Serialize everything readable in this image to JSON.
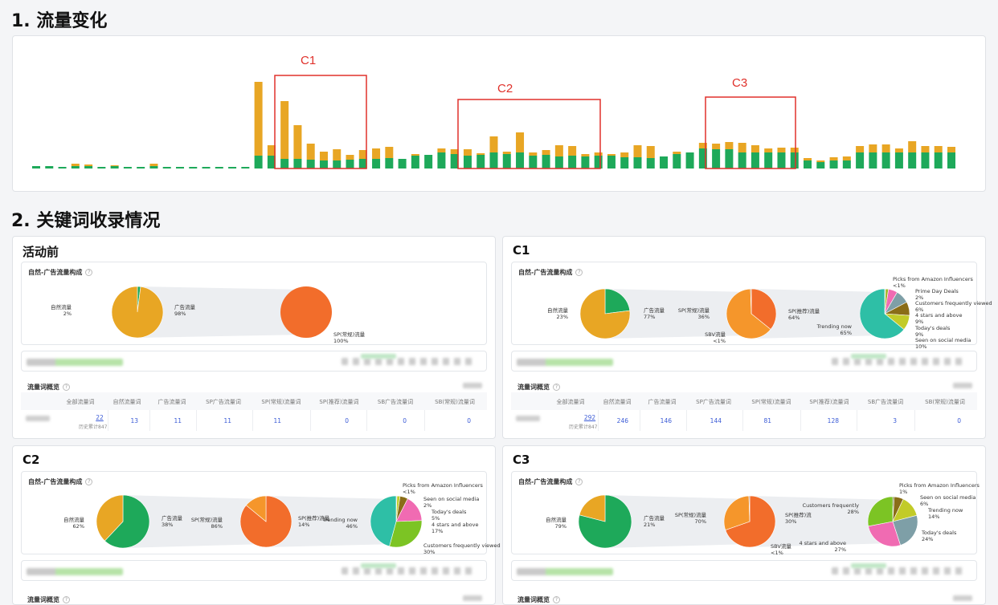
{
  "headings": {
    "traffic": "1. 流量变化",
    "keywords": "2. 关键词收录情况"
  },
  "traffic_chart": {
    "chart_data": {
      "type": "bar",
      "stacked": true,
      "series": [
        {
          "name": "",
          "color": "#1ea95a",
          "values": [
            3,
            3,
            2,
            3,
            3,
            2,
            3,
            2,
            2,
            3,
            2,
            2,
            2,
            2,
            2,
            2,
            2,
            16,
            16,
            12,
            12,
            11,
            10,
            10,
            11,
            12,
            12,
            13,
            12,
            16,
            17,
            20,
            18,
            16,
            17,
            20,
            18,
            20,
            16,
            17,
            15,
            16,
            15,
            16,
            16,
            14,
            14,
            13,
            15,
            18,
            20,
            25,
            24,
            24,
            20,
            20,
            20,
            20,
            20,
            10,
            8,
            10,
            10,
            20,
            20,
            20,
            20,
            20,
            20,
            20,
            20
          ]
        },
        {
          "name": "",
          "color": "#e8a624",
          "values": [
            0,
            0,
            0,
            3,
            2,
            0,
            1,
            0,
            0,
            3,
            0,
            0,
            0,
            0,
            0,
            0,
            0,
            92,
            13,
            72,
            42,
            20,
            11,
            14,
            6,
            11,
            13,
            14,
            0,
            2,
            0,
            5,
            6,
            8,
            2,
            20,
            3,
            25,
            4,
            6,
            14,
            12,
            3,
            4,
            2,
            6,
            15,
            15,
            0,
            3,
            0,
            7,
            7,
            9,
            12,
            9,
            5,
            6,
            6,
            3,
            2,
            4,
            5,
            8,
            10,
            10,
            5,
            14,
            8,
            8,
            7
          ]
        }
      ]
    },
    "boxes": [
      {
        "label": "C1",
        "color": "#e0312b"
      },
      {
        "label": "C2",
        "color": "#e0312b"
      },
      {
        "label": "C3",
        "color": "#e0312b"
      }
    ]
  },
  "panels": [
    {
      "title": "活动前",
      "section_title": "自然-广告流量构成",
      "pie1": {
        "labels": [
          {
            "name": "自然流量",
            "pct": "2%"
          },
          {
            "name": "广告流量",
            "pct": "98%"
          }
        ],
        "chart_data": {
          "type": "pie",
          "values": [
            2,
            98
          ],
          "colors": [
            "#1ea95a",
            "#e8a624"
          ]
        }
      },
      "pie2": {
        "labels": [
          {
            "name": "SP(常规)流量",
            "pct": "100%"
          }
        ],
        "chart_data": {
          "type": "pie",
          "values": [
            100
          ],
          "colors": [
            "#f26d2b"
          ]
        }
      },
      "pie3": null,
      "overview_title": "流量词概览",
      "table": {
        "headers": [
          "全部流量词",
          "自然流量词",
          "广告流量词",
          "SP广告流量词",
          "SP(常规)流量词",
          "SP(推荐)流量词",
          "SB广告流量词",
          "SB(常规)流量词"
        ],
        "values": [
          "22",
          "13",
          "11",
          "11",
          "11",
          "0",
          "0",
          "0"
        ],
        "history": "历史累计847"
      }
    },
    {
      "title": "C1",
      "section_title": "自然-广告流量构成",
      "pie1": {
        "labels": [
          {
            "name": "自然流量",
            "pct": "23%"
          },
          {
            "name": "广告流量",
            "pct": "77%"
          }
        ],
        "chart_data": {
          "type": "pie",
          "values": [
            23,
            77
          ],
          "colors": [
            "#1ea95a",
            "#e8a624"
          ]
        }
      },
      "pie2": {
        "labels": [
          {
            "name": "SP(常规)流量",
            "pct": "36%"
          },
          {
            "name": "SP(推荐)流量",
            "pct": "64%"
          },
          {
            "name": "SBV流量",
            "pct": "<1%"
          }
        ],
        "chart_data": {
          "type": "pie",
          "values": [
            36,
            64,
            0.5
          ],
          "colors": [
            "#f26d2b",
            "#f5962b",
            "#8a5a2b"
          ]
        }
      },
      "pie3": {
        "labels": [
          {
            "name": "Picks from Amazon Influencers",
            "pct": "<1%"
          },
          {
            "name": "Prime Day Deals",
            "pct": "2%"
          },
          {
            "name": "Customers frequently viewed",
            "pct": "6%"
          },
          {
            "name": "4 stars and above",
            "pct": "9%"
          },
          {
            "name": "Today's deals",
            "pct": "9%"
          },
          {
            "name": "Seen on social media",
            "pct": "10%"
          },
          {
            "name": "Trending now",
            "pct": "65%"
          }
        ],
        "chart_data": {
          "type": "pie",
          "values": [
            0.5,
            2,
            6,
            9,
            9,
            10,
            65
          ],
          "colors": [
            "#6d6a2d",
            "#a1b82a",
            "#f06bb2",
            "#7e9fa7",
            "#8a6d18",
            "#c2cb28",
            "#2ebfa6"
          ]
        }
      },
      "overview_title": "流量词概览",
      "table": {
        "headers": [
          "全部流量词",
          "自然流量词",
          "广告流量词",
          "SP广告流量词",
          "SP(常规)流量词",
          "SP(推荐)流量词",
          "SB广告流量词",
          "SB(常规)流量词"
        ],
        "values": [
          "292",
          "246",
          "146",
          "144",
          "81",
          "128",
          "3",
          "0"
        ],
        "history": "历史累计847"
      }
    },
    {
      "title": "C2",
      "section_title": "自然-广告流量构成",
      "pie1": {
        "labels": [
          {
            "name": "自然流量",
            "pct": "62%"
          },
          {
            "name": "广告流量",
            "pct": "38%"
          }
        ],
        "chart_data": {
          "type": "pie",
          "values": [
            62,
            38
          ],
          "colors": [
            "#1ea95a",
            "#e8a624"
          ]
        }
      },
      "pie2": {
        "labels": [
          {
            "name": "SP(常规)流量",
            "pct": "86%"
          },
          {
            "name": "SP(推荐)流量",
            "pct": "14%"
          }
        ],
        "chart_data": {
          "type": "pie",
          "values": [
            86,
            14
          ],
          "colors": [
            "#f26d2b",
            "#f5962b"
          ]
        }
      },
      "pie3": {
        "labels": [
          {
            "name": "Picks from Amazon Influencers",
            "pct": "<1%"
          },
          {
            "name": "Seen on social media",
            "pct": "2%"
          },
          {
            "name": "Today's deals",
            "pct": "5%"
          },
          {
            "name": "4 stars and above",
            "pct": "17%"
          },
          {
            "name": "Customers frequently viewed",
            "pct": "30%"
          },
          {
            "name": "Trending now",
            "pct": "46%"
          }
        ],
        "chart_data": {
          "type": "pie",
          "values": [
            0.5,
            2,
            5,
            17,
            30,
            46
          ],
          "colors": [
            "#6d6a2d",
            "#c2cb28",
            "#8a6d18",
            "#f06bb2",
            "#7cc424",
            "#2ebfa6"
          ]
        }
      },
      "overview_title": "流量词概览",
      "table": null
    },
    {
      "title": "C3",
      "section_title": "自然-广告流量构成",
      "pie1": {
        "labels": [
          {
            "name": "自然流量",
            "pct": "79%"
          },
          {
            "name": "广告流量",
            "pct": "21%"
          }
        ],
        "chart_data": {
          "type": "pie",
          "values": [
            79,
            21
          ],
          "colors": [
            "#1ea95a",
            "#e8a624"
          ]
        }
      },
      "pie2": {
        "labels": [
          {
            "name": "SP(常规)流量",
            "pct": "70%"
          },
          {
            "name": "SP(推荐)流",
            "pct": "30%"
          },
          {
            "name": "SBV流量",
            "pct": "<1%"
          }
        ],
        "chart_data": {
          "type": "pie",
          "values": [
            70,
            30,
            0.5
          ],
          "colors": [
            "#f26d2b",
            "#f5962b",
            "#8a5a2b"
          ]
        }
      },
      "pie3": {
        "labels": [
          {
            "name": "Picks from Amazon Influencers",
            "pct": "1%"
          },
          {
            "name": "Seen on social media",
            "pct": "6%"
          },
          {
            "name": "Trending now",
            "pct": "14%"
          },
          {
            "name": "Today's deals",
            "pct": "24%"
          },
          {
            "name": "4 stars and above",
            "pct": "27%"
          },
          {
            "name": "Customers frequently",
            "pct": "28%"
          }
        ],
        "chart_data": {
          "type": "pie",
          "values": [
            1,
            6,
            14,
            24,
            27,
            28
          ],
          "colors": [
            "#6d6a2d",
            "#8a6d18",
            "#c2cb28",
            "#7e9fa7",
            "#f06bb2",
            "#7cc424"
          ]
        }
      },
      "overview_title": "流量词概览",
      "table": null
    }
  ]
}
